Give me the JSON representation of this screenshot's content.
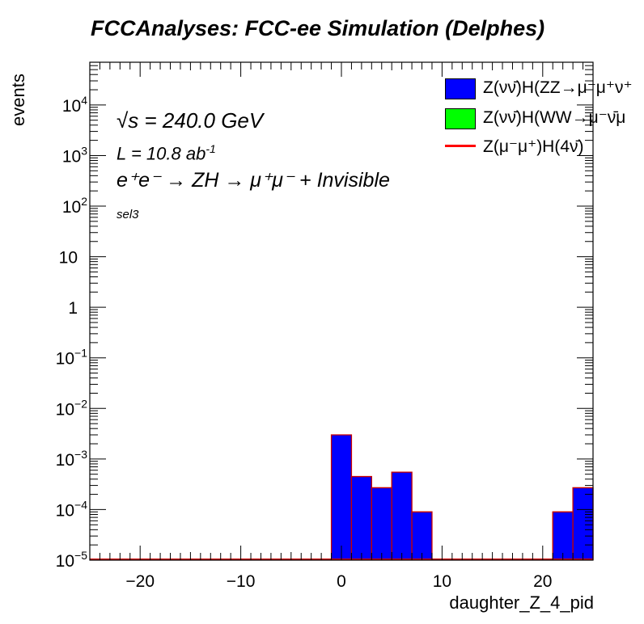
{
  "title": "FCCAnalyses: FCC-ee Simulation (Delphes)",
  "annotations": {
    "sqrt_s": "√s = 240.0 GeV",
    "lumi": "L = 10.8 ab",
    "lumi_sup": "-1",
    "process": "e⁺e⁻ → ZH → μ⁺μ⁻ + Invisible",
    "selection": "sel3"
  },
  "legend": [
    {
      "label": "Z(νν̄)H(ZZ→μ⁻μ⁺ν⁺",
      "color": "#0000ff",
      "kind": "box"
    },
    {
      "label": "Z(νν̄)H(WW→μ⁻ν̄μ",
      "color": "#00ff00",
      "kind": "box"
    },
    {
      "label": "Z(μ⁻μ⁺)H(4ν̄)",
      "color": "#ff0000",
      "kind": "line"
    }
  ],
  "chart_data": {
    "type": "bar",
    "title": "FCCAnalyses: FCC-ee Simulation (Delphes)",
    "xlabel": "daughter_Z_4_pid",
    "ylabel": "events",
    "xlim": [
      -25,
      25
    ],
    "ylim": [
      1e-05,
      70000
    ],
    "log_y": true,
    "grid": false,
    "legend_position": "top-right",
    "x_ticks": [
      -20,
      -10,
      0,
      10,
      20
    ],
    "x_tick_labels": [
      "−20",
      "−10",
      "0",
      "10",
      "20"
    ],
    "y_ticks": [
      1e-05,
      0.0001,
      0.001,
      0.01,
      0.1,
      1,
      10,
      100,
      1000,
      10000
    ],
    "y_tick_labels": [
      {
        "base": "10",
        "exp": "−5"
      },
      {
        "base": "10",
        "exp": "−4"
      },
      {
        "base": "10",
        "exp": "−3"
      },
      {
        "base": "10",
        "exp": "−2"
      },
      {
        "base": "10",
        "exp": "−1"
      },
      {
        "base": "1",
        "exp": ""
      },
      {
        "base": "10",
        "exp": ""
      },
      {
        "base": "10",
        "exp": "2"
      },
      {
        "base": "10",
        "exp": "3"
      },
      {
        "base": "10",
        "exp": "4"
      }
    ],
    "bin_width": 2,
    "series": [
      {
        "name": "Z(νν̄)H(ZZ→μ⁻μ⁺ν⁺",
        "color": "#0000ff",
        "bins": [
          {
            "x0": -1,
            "x1": 1,
            "value": 0.003
          },
          {
            "x0": 1,
            "x1": 3,
            "value": 0.00045
          },
          {
            "x0": 3,
            "x1": 5,
            "value": 0.00027
          },
          {
            "x0": 5,
            "x1": 7,
            "value": 0.00055
          },
          {
            "x0": 7,
            "x1": 9,
            "value": 9e-05
          },
          {
            "x0": 21,
            "x1": 23,
            "value": 9e-05
          },
          {
            "x0": 23,
            "x1": 25,
            "value": 0.00027
          }
        ]
      }
    ]
  }
}
